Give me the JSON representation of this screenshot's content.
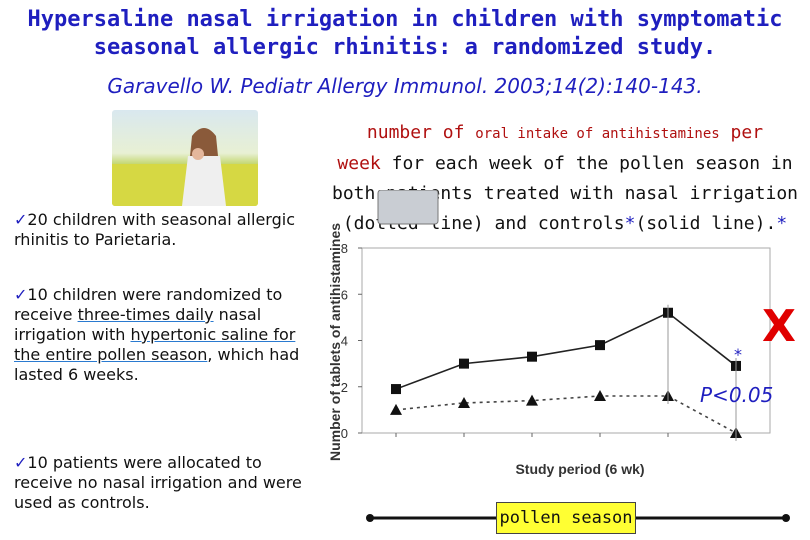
{
  "title": {
    "line1": "Hypersaline nasal irrigation in children with symptomatic",
    "line2": "seasonal allergic rhinitis: a randomized study."
  },
  "citation": "Garavello W. Pediatr Allergy Immunol. 2003;14(2):140-143.",
  "bullets": {
    "b1": "20 children with seasonal allergic rhinitis to Parietaria.",
    "b2_pre": "10 children were randomized to receive ",
    "b2_u1": "three-times daily",
    "b2_mid": " nasal irrigation with ",
    "b2_u2": "hypertonic saline for the entire pollen season",
    "b2_post": ", which had lasted 6 weeks.",
    "b3": "10 patients were allocated to receive no nasal irrigation and were used as controls."
  },
  "caption": {
    "w1": "number of ",
    "w2": "oral intake of antihistamines",
    "w3": " per",
    "w4": "week",
    "w5": " for each week of the pollen season in both patients treated with nasal irrigation (dotted line) and controls",
    "w6": "(solid line).",
    "star": "*"
  },
  "pvalue": "P<0.05",
  "cross_symbol": "X",
  "season_label": "pollen season",
  "chart_data": {
    "type": "line",
    "ylabel": "Number of tablets of antihistamines",
    "xlabel": "Study period (6 wk)",
    "ylim": [
      0,
      8
    ],
    "yticks": [
      0,
      2,
      4,
      6,
      8
    ],
    "x": [
      1,
      2,
      3,
      4,
      5,
      6
    ],
    "series": [
      {
        "style": "solid",
        "marker": "square",
        "values": [
          1.9,
          3.0,
          3.3,
          3.8,
          5.2,
          2.9
        ]
      },
      {
        "style": "dotted",
        "marker": "triangle",
        "values": [
          1.0,
          1.3,
          1.4,
          1.6,
          1.6,
          0.0
        ]
      }
    ],
    "significance": [
      "*",
      "*"
    ]
  }
}
